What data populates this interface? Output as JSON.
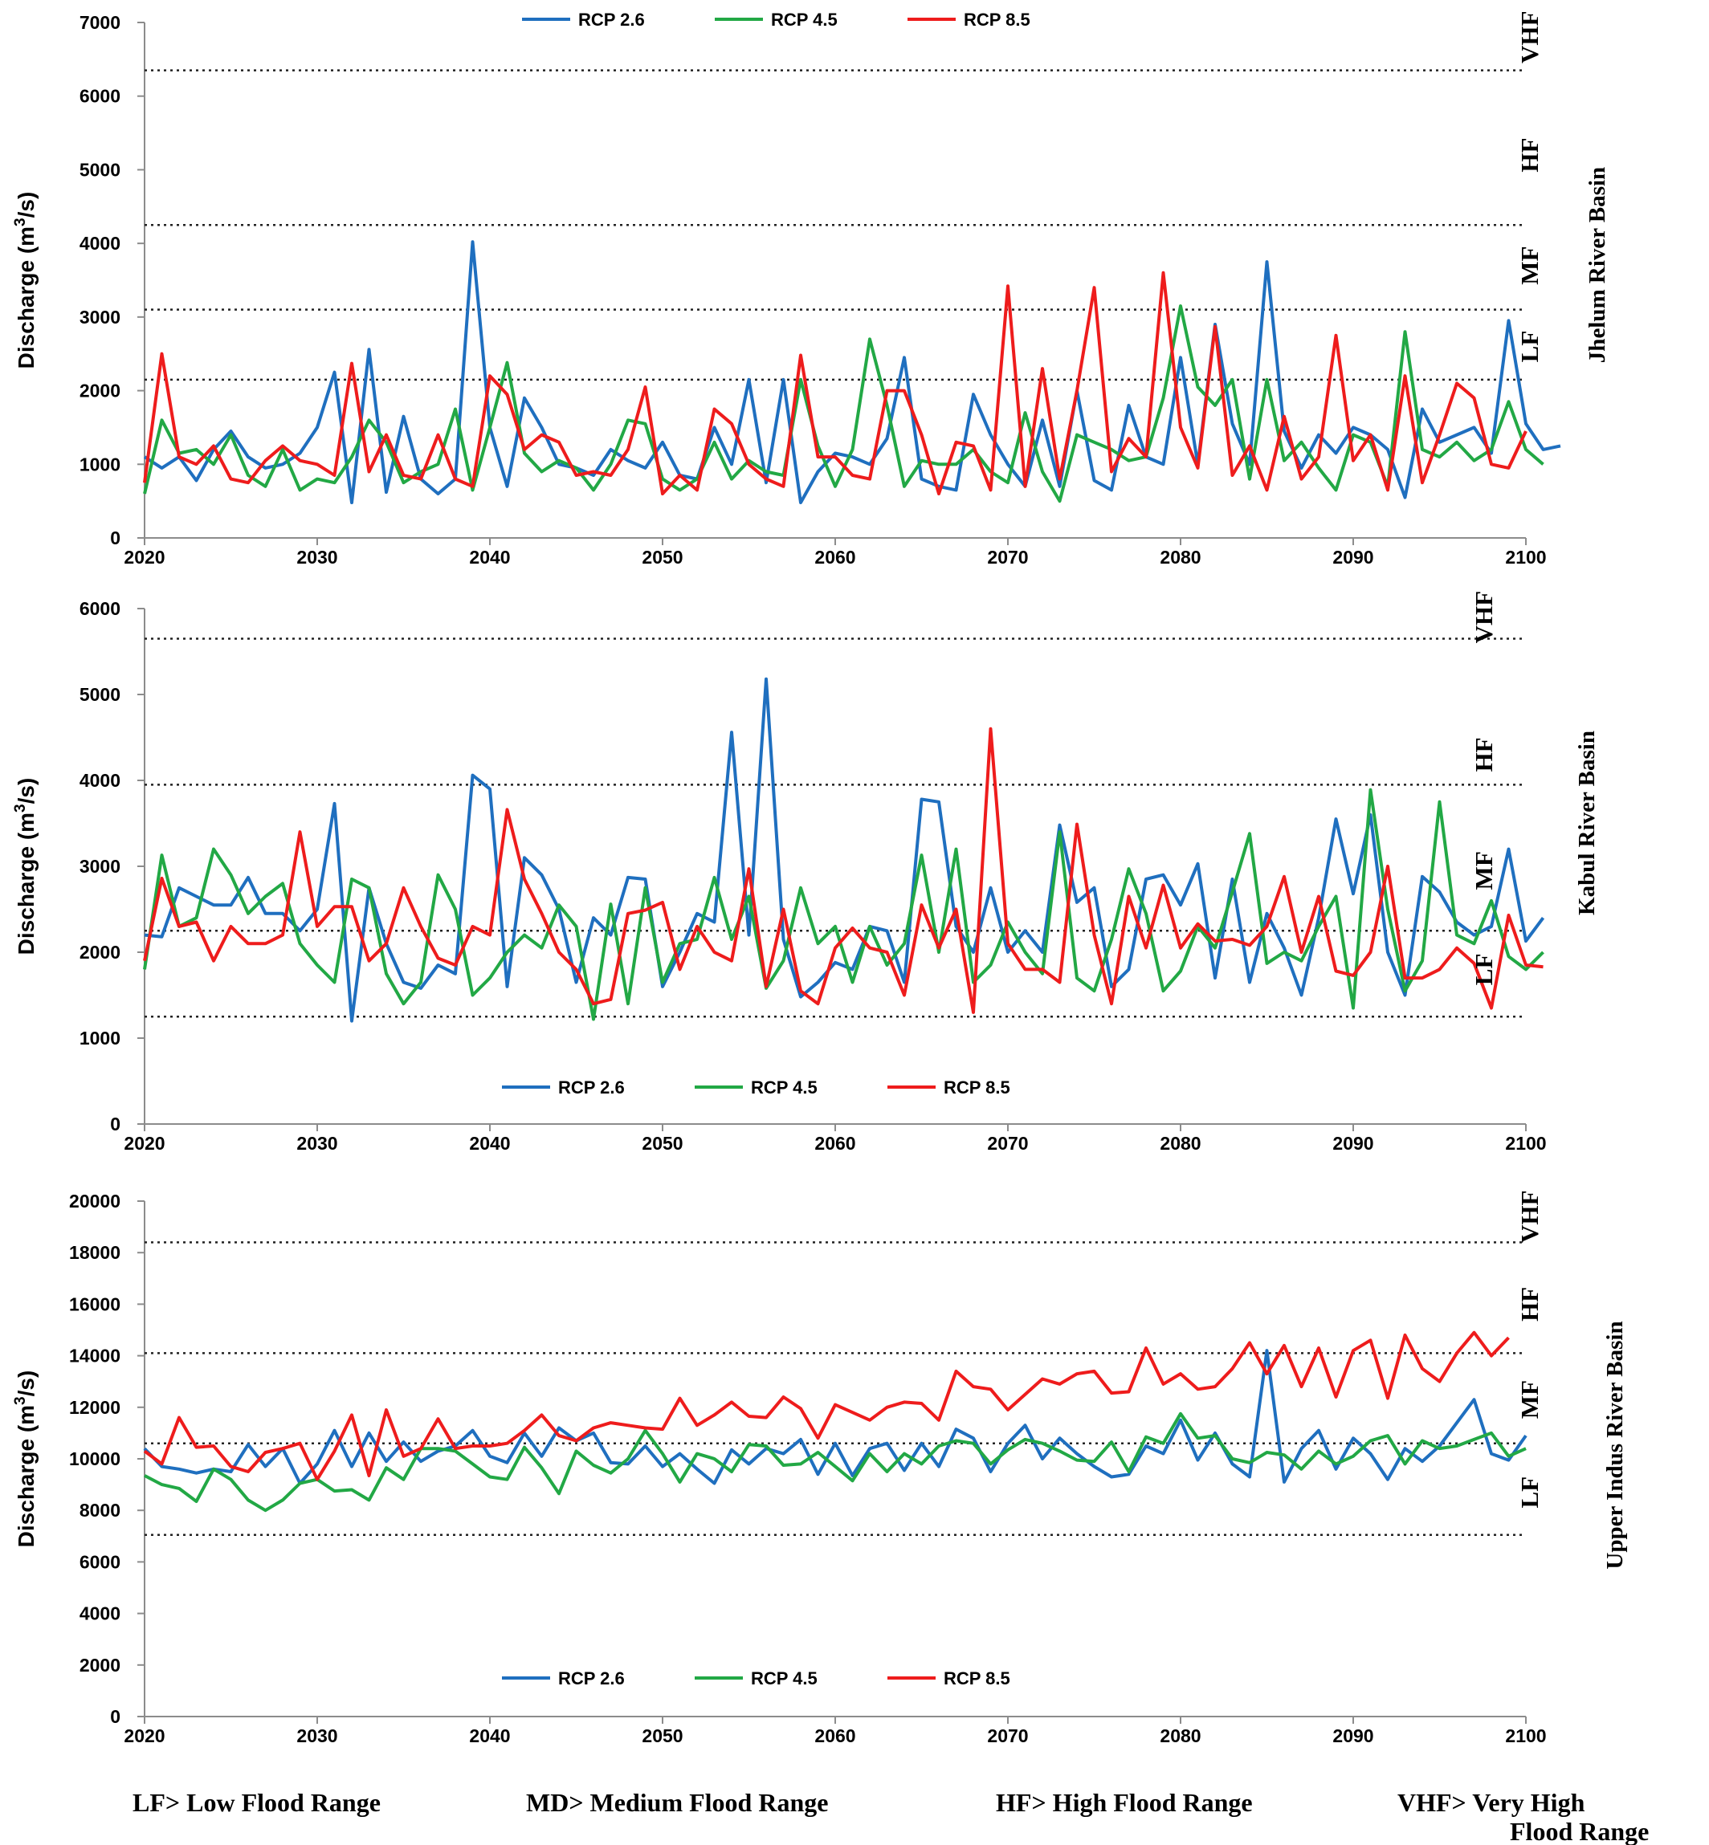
{
  "colors": {
    "rcp26": "#1f6fbf",
    "rcp45": "#22a845",
    "rcp85": "#ee1c1c"
  },
  "legend": [
    "RCP 2.6",
    "RCP 4.5",
    "RCP 8.5"
  ],
  "footer": {
    "lf": "LF> Low Flood Range",
    "md": "MD> Medium Flood Range",
    "hf": "HF> High Flood Range",
    "vhf_line1": "VHF> Very High",
    "vhf_line2": "Flood Range"
  },
  "chart_data": [
    {
      "type": "line",
      "basin": "Jhelum River Basin",
      "ylabel": "Discharge (m³/s)",
      "xlim": [
        2020,
        2100
      ],
      "ylim": [
        0,
        7000
      ],
      "xticks": [
        2020,
        2030,
        2040,
        2050,
        2060,
        2070,
        2080,
        2090,
        2100
      ],
      "yticks": [
        0,
        1000,
        2000,
        3000,
        4000,
        5000,
        6000,
        7000
      ],
      "thresholds": [
        2150,
        3100,
        4250,
        6350
      ],
      "bands": [
        {
          "label": "LF",
          "value": 2600
        },
        {
          "label": "MF",
          "value": 3700
        },
        {
          "label": "HF",
          "value": 5200
        },
        {
          "label": "VHF",
          "value": 6800
        }
      ],
      "legend_position": "top",
      "x_start": 2020,
      "series": [
        {
          "name": "RCP 2.6",
          "values": [
            1100,
            950,
            1100,
            780,
            1200,
            1450,
            1100,
            950,
            1000,
            1150,
            1500,
            2250,
            480,
            2560,
            620,
            1650,
            800,
            600,
            800,
            4020,
            1500,
            700,
            1900,
            1500,
            1000,
            950,
            850,
            1200,
            1050,
            950,
            1300,
            850,
            800,
            1500,
            1000,
            2150,
            750,
            2150,
            480,
            900,
            1150,
            1100,
            1000,
            1350,
            2450,
            800,
            700,
            650,
            1950,
            1400,
            1000,
            700,
            1600,
            700,
            2000,
            780,
            650,
            1800,
            1100,
            1000,
            2450,
            1000,
            2900,
            1550,
            1000,
            3750,
            1450,
            950,
            1400,
            1150,
            1500,
            1400,
            1200,
            550,
            1750,
            1300,
            1400,
            1500,
            1150,
            2950,
            1550,
            1200,
            1250
          ]
        },
        {
          "name": "RCP 4.5",
          "values": [
            600,
            1600,
            1150,
            1200,
            1000,
            1400,
            850,
            700,
            1200,
            650,
            800,
            750,
            1100,
            1600,
            1300,
            750,
            900,
            1000,
            1750,
            650,
            1500,
            2380,
            1150,
            900,
            1050,
            950,
            650,
            1000,
            1600,
            1550,
            800,
            650,
            800,
            1300,
            800,
            1050,
            900,
            850,
            2150,
            1250,
            700,
            1200,
            2700,
            1800,
            700,
            1050,
            1000,
            1000,
            1200,
            900,
            750,
            1700,
            900,
            500,
            1400,
            1300,
            1200,
            1050,
            1100,
            1900,
            3150,
            2050,
            1800,
            2150,
            800,
            2150,
            1050,
            1300,
            950,
            650,
            1400,
            1300,
            700,
            2800,
            1200,
            1100,
            1300,
            1050,
            1200,
            1850,
            1200,
            1000
          ]
        },
        {
          "name": "RCP 8.5",
          "values": [
            750,
            2500,
            1100,
            1000,
            1250,
            800,
            750,
            1050,
            1250,
            1050,
            1000,
            850,
            2370,
            900,
            1400,
            850,
            800,
            1400,
            800,
            700,
            2200,
            1950,
            1200,
            1400,
            1300,
            850,
            900,
            850,
            1200,
            2050,
            600,
            850,
            650,
            1750,
            1550,
            1000,
            800,
            700,
            2480,
            1100,
            1100,
            850,
            800,
            2000,
            2000,
            1400,
            600,
            1300,
            1250,
            650,
            3420,
            700,
            2300,
            800,
            2000,
            3400,
            900,
            1350,
            1100,
            3600,
            1500,
            950,
            2870,
            850,
            1250,
            650,
            1650,
            800,
            1100,
            2750,
            1050,
            1400,
            650,
            2200,
            750,
            1400,
            2100,
            1900,
            1000,
            950,
            1450
          ]
        }
      ]
    },
    {
      "type": "line",
      "basin": "Kabul River Basin",
      "ylabel": "Discharge (m³/s)",
      "xlim": [
        2020,
        2100
      ],
      "ylim": [
        0,
        6000
      ],
      "xticks": [
        2020,
        2030,
        2040,
        2050,
        2060,
        2070,
        2080,
        2090,
        2100
      ],
      "yticks": [
        0,
        1000,
        2000,
        3000,
        4000,
        5000,
        6000
      ],
      "thresholds": [
        1250,
        2250,
        3950,
        5650
      ],
      "bands": [
        {
          "label": "LF",
          "value": 1800
        },
        {
          "label": "MF",
          "value": 2950
        },
        {
          "label": "HF",
          "value": 4300
        },
        {
          "label": "VHF",
          "value": 5900
        }
      ],
      "legend_position": "bottom",
      "x_start": 2020,
      "series": [
        {
          "name": "RCP 2.6",
          "values": [
            2200,
            2180,
            2750,
            2650,
            2550,
            2550,
            2870,
            2450,
            2450,
            2250,
            2500,
            3730,
            1200,
            2750,
            2100,
            1650,
            1580,
            1850,
            1750,
            4060,
            3900,
            1600,
            3100,
            2900,
            2500,
            1650,
            2400,
            2200,
            2870,
            2850,
            1600,
            2000,
            2450,
            2350,
            4560,
            2200,
            5180,
            2150,
            1480,
            1650,
            1880,
            1800,
            2300,
            2250,
            1650,
            3780,
            3750,
            2300,
            2000,
            2750,
            2000,
            2250,
            2000,
            3480,
            2580,
            2750,
            1600,
            1800,
            2850,
            2900,
            2550,
            3030,
            1700,
            2850,
            1650,
            2450,
            2050,
            1500,
            2400,
            3550,
            2680,
            3600,
            2000,
            1500,
            2880,
            2700,
            2350,
            2200,
            2300,
            3200,
            2130,
            2400
          ]
        },
        {
          "name": "RCP 4.5",
          "values": [
            1800,
            3130,
            2300,
            2400,
            3200,
            2900,
            2450,
            2650,
            2800,
            2100,
            1850,
            1650,
            2850,
            2750,
            1750,
            1400,
            1650,
            2900,
            2500,
            1500,
            1700,
            2000,
            2200,
            2050,
            2550,
            2300,
            1220,
            2560,
            1400,
            2750,
            1650,
            2100,
            2150,
            2870,
            2150,
            2650,
            1580,
            1900,
            2750,
            2100,
            2300,
            1650,
            2300,
            1850,
            2100,
            3130,
            2000,
            3200,
            1650,
            1850,
            2350,
            2000,
            1750,
            3400,
            1700,
            1550,
            2150,
            2970,
            2450,
            1550,
            1780,
            2300,
            2050,
            2700,
            3380,
            1870,
            2000,
            1900,
            2300,
            2650,
            1350,
            3890,
            2500,
            1550,
            1900,
            3750,
            2200,
            2100,
            2600,
            1950,
            1800,
            2000
          ]
        },
        {
          "name": "RCP 8.5",
          "values": [
            1900,
            2860,
            2300,
            2350,
            1900,
            2300,
            2100,
            2100,
            2200,
            3400,
            2300,
            2530,
            2530,
            1900,
            2100,
            2750,
            2300,
            1930,
            1850,
            2300,
            2200,
            3660,
            2850,
            2450,
            2000,
            1800,
            1400,
            1450,
            2450,
            2490,
            2580,
            1800,
            2300,
            2000,
            1900,
            2970,
            1600,
            2500,
            1550,
            1400,
            2050,
            2280,
            2050,
            2000,
            1500,
            2550,
            2050,
            2500,
            1300,
            4600,
            2100,
            1800,
            1800,
            1650,
            3490,
            2200,
            1400,
            2650,
            2050,
            2780,
            2050,
            2330,
            2130,
            2150,
            2080,
            2300,
            2880,
            2000,
            2650,
            1780,
            1730,
            2000,
            3000,
            1700,
            1700,
            1800,
            2050,
            1870,
            1350,
            2430,
            1850,
            1830
          ]
        }
      ]
    },
    {
      "type": "line",
      "basin": "Upper Indus River Basin",
      "ylabel": "Discharge (m³/s)",
      "xlim": [
        2020,
        2100
      ],
      "ylim": [
        0,
        20000
      ],
      "xticks": [
        2020,
        2030,
        2040,
        2050,
        2060,
        2070,
        2080,
        2090,
        2100
      ],
      "yticks": [
        0,
        2000,
        4000,
        6000,
        8000,
        10000,
        12000,
        14000,
        16000,
        18000,
        20000
      ],
      "thresholds": [
        7050,
        10600,
        14100,
        18400
      ],
      "bands": [
        {
          "label": "LF",
          "value": 8700
        },
        {
          "label": "MF",
          "value": 12300
        },
        {
          "label": "HF",
          "value": 16000
        },
        {
          "label": "VHF",
          "value": 19400
        }
      ],
      "legend_position": "bottom",
      "x_start": 2020,
      "series": [
        {
          "name": "RCP 2.6",
          "values": [
            10400,
            9700,
            9600,
            9450,
            9600,
            9500,
            10550,
            9700,
            10400,
            9050,
            9800,
            11100,
            9700,
            11000,
            9900,
            10650,
            9900,
            10300,
            10500,
            11100,
            10100,
            9850,
            11000,
            10100,
            11200,
            10700,
            11000,
            9850,
            9800,
            10500,
            9700,
            10200,
            9600,
            9050,
            10350,
            9800,
            10400,
            10200,
            10750,
            9400,
            10600,
            9350,
            10400,
            10600,
            9550,
            10600,
            9700,
            11150,
            10800,
            9500,
            10600,
            11300,
            10000,
            10800,
            10200,
            9700,
            9300,
            9400,
            10500,
            10200,
            11500,
            9950,
            11000,
            9800,
            9300,
            14200,
            9100,
            10400,
            11100,
            9600,
            10800,
            10200,
            9200,
            10400,
            9900,
            10500,
            11400,
            12300,
            10200,
            9950,
            10900
          ]
        },
        {
          "name": "RCP 4.5",
          "values": [
            9350,
            9000,
            8850,
            8350,
            9600,
            9200,
            8400,
            8000,
            8400,
            9050,
            9200,
            8750,
            8800,
            8400,
            9650,
            9200,
            10400,
            10400,
            10300,
            9800,
            9300,
            9200,
            10450,
            9650,
            8650,
            10300,
            9750,
            9450,
            10000,
            11100,
            10200,
            9100,
            10200,
            10000,
            9500,
            10550,
            10500,
            9750,
            9800,
            10250,
            9700,
            9150,
            10200,
            9500,
            10200,
            9800,
            10500,
            10700,
            10600,
            9800,
            10350,
            10750,
            10600,
            10300,
            9950,
            9900,
            10650,
            9500,
            10850,
            10600,
            11750,
            10800,
            10900,
            10000,
            9850,
            10250,
            10150,
            9600,
            10300,
            9800,
            10100,
            10700,
            10900,
            9800,
            10700,
            10400,
            10500,
            10750,
            11000,
            10100,
            10400
          ]
        },
        {
          "name": "RCP 8.5",
          "values": [
            10300,
            9800,
            11600,
            10450,
            10500,
            9700,
            9500,
            10250,
            10400,
            10600,
            9200,
            10300,
            11700,
            9350,
            11900,
            10100,
            10400,
            11550,
            10400,
            10500,
            10500,
            10600,
            11100,
            11700,
            10900,
            10700,
            11200,
            11400,
            11300,
            11200,
            11150,
            12350,
            11300,
            11700,
            12200,
            11650,
            11600,
            12400,
            11950,
            10800,
            12100,
            11800,
            11500,
            12000,
            12200,
            12150,
            11500,
            13400,
            12800,
            12700,
            11900,
            12500,
            13100,
            12900,
            13300,
            13400,
            12550,
            12600,
            14300,
            12900,
            13300,
            12700,
            12800,
            13500,
            14500,
            13300,
            14400,
            12800,
            14300,
            12400,
            14200,
            14600,
            12350,
            14800,
            13500,
            13000,
            14100,
            14900,
            14000,
            14700
          ]
        }
      ]
    }
  ]
}
